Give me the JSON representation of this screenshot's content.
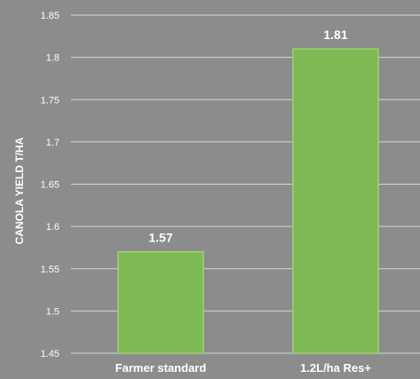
{
  "chart_data": {
    "type": "bar",
    "categories": [
      "Farmer standard",
      "1.2L/ha Res+"
    ],
    "values": [
      1.57,
      1.81
    ],
    "value_labels": [
      "1.57",
      "1.81"
    ],
    "title": "",
    "xlabel": "",
    "ylabel": "CANOLA YIELD T/HA",
    "ylim": [
      1.45,
      1.85
    ],
    "yticks": [
      1.45,
      1.5,
      1.55,
      1.6,
      1.65,
      1.7,
      1.75,
      1.8,
      1.85
    ],
    "ytick_labels": [
      "1.45",
      "1.5",
      "1.55",
      "1.6",
      "1.65",
      "1.7",
      "1.75",
      "1.8",
      "1.85"
    ],
    "grid": true,
    "legend": "none",
    "colors": {
      "bar": "#7dba54",
      "bar_edge": "#9fd277",
      "background": "#8c8c8c",
      "gridline": "#d6d6d6",
      "text": "#ffffff"
    }
  }
}
